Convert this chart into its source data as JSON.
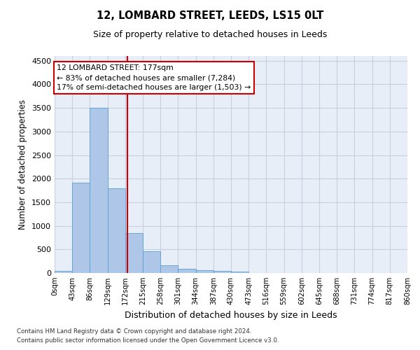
{
  "title1": "12, LOMBARD STREET, LEEDS, LS15 0LT",
  "title2": "Size of property relative to detached houses in Leeds",
  "xlabel": "Distribution of detached houses by size in Leeds",
  "ylabel": "Number of detached properties",
  "property_size": 177,
  "property_label": "12 LOMBARD STREET: 177sqm",
  "pct_smaller": 83,
  "count_smaller": 7284,
  "pct_larger": 17,
  "count_larger": 1503,
  "bin_edges": [
    0,
    43,
    86,
    129,
    172,
    215,
    258,
    301,
    344,
    387,
    430,
    473,
    516,
    559,
    602,
    645,
    688,
    731,
    774,
    817,
    860
  ],
  "bar_heights": [
    40,
    1920,
    3500,
    1790,
    840,
    460,
    160,
    95,
    65,
    50,
    35,
    0,
    0,
    0,
    0,
    0,
    0,
    0,
    0,
    0
  ],
  "bar_color": "#aec6e8",
  "bar_edgecolor": "#5a9fd4",
  "vline_x": 177,
  "vline_color": "#cc0000",
  "ylim": [
    0,
    4600
  ],
  "yticks": [
    0,
    500,
    1000,
    1500,
    2000,
    2500,
    3000,
    3500,
    4000,
    4500
  ],
  "grid_color": "#c8d0e0",
  "bg_color": "#e8eef8",
  "annotation_box_color": "#cc0000",
  "footer1": "Contains HM Land Registry data © Crown copyright and database right 2024.",
  "footer2": "Contains public sector information licensed under the Open Government Licence v3.0."
}
